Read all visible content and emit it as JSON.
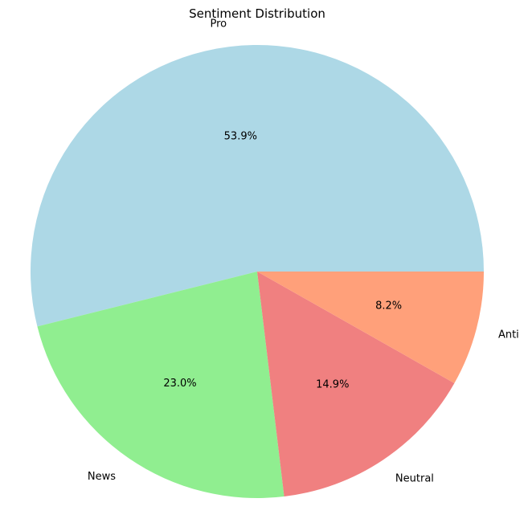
{
  "chart_data": {
    "type": "pie",
    "title": "Sentiment Distribution",
    "slices": [
      {
        "label": "Pro",
        "value": 53.9,
        "percent_label": "53.9%",
        "color": "#ADD8E6"
      },
      {
        "label": "News",
        "value": 23.0,
        "percent_label": "23.0%",
        "color": "#90EE90"
      },
      {
        "label": "Neutral",
        "value": 14.9,
        "percent_label": "14.9%",
        "color": "#F08080"
      },
      {
        "label": "Anti",
        "value": 8.2,
        "percent_label": "8.2%",
        "color": "#FFA07A"
      }
    ],
    "start_angle_deg": 0,
    "direction": "counterclockwise",
    "legend": false,
    "grid": false
  }
}
